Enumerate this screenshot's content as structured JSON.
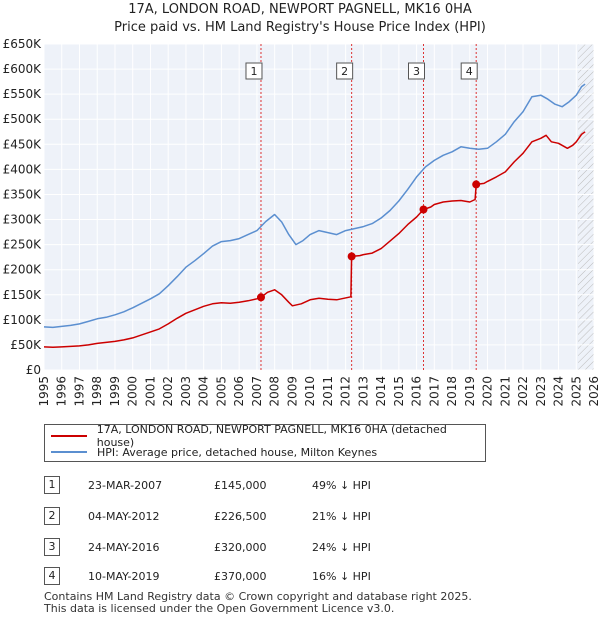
{
  "chart_data": {
    "type": "line",
    "title": "17A, LONDON ROAD, NEWPORT PAGNELL, MK16 0HA",
    "subtitle": "Price paid vs. HM Land Registry's House Price Index (HPI)",
    "xlabel": "",
    "ylabel": "",
    "xlim": [
      1995,
      2026
    ],
    "ylim": [
      0,
      650000
    ],
    "x_ticks": [
      "1995",
      "1996",
      "1997",
      "1998",
      "1999",
      "2000",
      "2001",
      "2002",
      "2003",
      "2004",
      "2005",
      "2006",
      "2007",
      "2008",
      "2009",
      "2010",
      "2011",
      "2012",
      "2013",
      "2014",
      "2015",
      "2016",
      "2017",
      "2018",
      "2019",
      "2020",
      "2021",
      "2022",
      "2023",
      "2024",
      "2025",
      "2026"
    ],
    "y_ticks": [
      {
        "value": 0,
        "label": "£0"
      },
      {
        "value": 50000,
        "label": "£50K"
      },
      {
        "value": 100000,
        "label": "£100K"
      },
      {
        "value": 150000,
        "label": "£150K"
      },
      {
        "value": 200000,
        "label": "£200K"
      },
      {
        "value": 250000,
        "label": "£250K"
      },
      {
        "value": 300000,
        "label": "£300K"
      },
      {
        "value": 350000,
        "label": "£350K"
      },
      {
        "value": 400000,
        "label": "£400K"
      },
      {
        "value": 450000,
        "label": "£450K"
      },
      {
        "value": 500000,
        "label": "£500K"
      },
      {
        "value": 550000,
        "label": "£550K"
      },
      {
        "value": 600000,
        "label": "£600K"
      },
      {
        "value": 650000,
        "label": "£650K"
      }
    ],
    "future_hatch_from": 2025.1,
    "series": [
      {
        "name": "17A, LONDON ROAD, NEWPORT PAGNELL, MK16 0HA (detached house)",
        "color": "#cc0000",
        "points": [
          [
            1995.0,
            46000
          ],
          [
            1995.5,
            45500
          ],
          [
            1996.0,
            46000
          ],
          [
            1996.5,
            47000
          ],
          [
            1997.0,
            48000
          ],
          [
            1997.5,
            50000
          ],
          [
            1998.0,
            53000
          ],
          [
            1998.5,
            55000
          ],
          [
            1999.0,
            57000
          ],
          [
            1999.5,
            60000
          ],
          [
            2000.0,
            64000
          ],
          [
            2000.5,
            70000
          ],
          [
            2001.0,
            76000
          ],
          [
            2001.5,
            82000
          ],
          [
            2002.0,
            92000
          ],
          [
            2002.5,
            103000
          ],
          [
            2003.0,
            113000
          ],
          [
            2003.5,
            120000
          ],
          [
            2004.0,
            127000
          ],
          [
            2004.5,
            132000
          ],
          [
            2005.0,
            134000
          ],
          [
            2005.5,
            133000
          ],
          [
            2006.0,
            135000
          ],
          [
            2006.5,
            138000
          ],
          [
            2007.0,
            142000
          ],
          [
            2007.23,
            145000
          ],
          [
            2007.6,
            155000
          ],
          [
            2008.0,
            160000
          ],
          [
            2008.4,
            150000
          ],
          [
            2008.8,
            135000
          ],
          [
            2009.0,
            128000
          ],
          [
            2009.5,
            132000
          ],
          [
            2010.0,
            140000
          ],
          [
            2010.5,
            143000
          ],
          [
            2011.0,
            141000
          ],
          [
            2011.5,
            140000
          ],
          [
            2011.9,
            143000
          ],
          [
            2012.3,
            146000
          ],
          [
            2012.34,
            226500
          ],
          [
            2012.8,
            228000
          ],
          [
            2013.0,
            230000
          ],
          [
            2013.5,
            233000
          ],
          [
            2014.0,
            242000
          ],
          [
            2014.5,
            257000
          ],
          [
            2015.0,
            272000
          ],
          [
            2015.5,
            290000
          ],
          [
            2016.0,
            305000
          ],
          [
            2016.39,
            320000
          ],
          [
            2016.8,
            325000
          ],
          [
            2017.0,
            330000
          ],
          [
            2017.5,
            335000
          ],
          [
            2018.0,
            337000
          ],
          [
            2018.5,
            338000
          ],
          [
            2019.0,
            335000
          ],
          [
            2019.3,
            340000
          ],
          [
            2019.36,
            370000
          ],
          [
            2019.8,
            372000
          ],
          [
            2020.0,
            376000
          ],
          [
            2020.5,
            385000
          ],
          [
            2021.0,
            395000
          ],
          [
            2021.5,
            415000
          ],
          [
            2022.0,
            432000
          ],
          [
            2022.5,
            455000
          ],
          [
            2023.0,
            462000
          ],
          [
            2023.3,
            468000
          ],
          [
            2023.6,
            455000
          ],
          [
            2024.0,
            452000
          ],
          [
            2024.5,
            442000
          ],
          [
            2024.8,
            448000
          ],
          [
            2025.0,
            455000
          ],
          [
            2025.3,
            470000
          ],
          [
            2025.5,
            475000
          ]
        ]
      },
      {
        "name": "HPI: Average price, detached house, Milton Keynes",
        "color": "#5b8fd0",
        "points": [
          [
            1995.0,
            86000
          ],
          [
            1995.5,
            85000
          ],
          [
            1996.0,
            87000
          ],
          [
            1996.5,
            89000
          ],
          [
            1997.0,
            92000
          ],
          [
            1997.5,
            97000
          ],
          [
            1998.0,
            102000
          ],
          [
            1998.5,
            105000
          ],
          [
            1999.0,
            110000
          ],
          [
            1999.5,
            116000
          ],
          [
            2000.0,
            124000
          ],
          [
            2000.5,
            133000
          ],
          [
            2001.0,
            142000
          ],
          [
            2001.5,
            152000
          ],
          [
            2002.0,
            168000
          ],
          [
            2002.5,
            186000
          ],
          [
            2003.0,
            205000
          ],
          [
            2003.5,
            218000
          ],
          [
            2004.0,
            232000
          ],
          [
            2004.5,
            247000
          ],
          [
            2005.0,
            256000
          ],
          [
            2005.5,
            258000
          ],
          [
            2006.0,
            262000
          ],
          [
            2006.5,
            270000
          ],
          [
            2007.0,
            278000
          ],
          [
            2007.5,
            296000
          ],
          [
            2008.0,
            310000
          ],
          [
            2008.4,
            295000
          ],
          [
            2008.8,
            270000
          ],
          [
            2009.2,
            250000
          ],
          [
            2009.6,
            258000
          ],
          [
            2010.0,
            270000
          ],
          [
            2010.5,
            278000
          ],
          [
            2011.0,
            274000
          ],
          [
            2011.5,
            270000
          ],
          [
            2012.0,
            278000
          ],
          [
            2012.5,
            282000
          ],
          [
            2013.0,
            286000
          ],
          [
            2013.5,
            292000
          ],
          [
            2014.0,
            303000
          ],
          [
            2014.5,
            318000
          ],
          [
            2015.0,
            337000
          ],
          [
            2015.5,
            360000
          ],
          [
            2016.0,
            385000
          ],
          [
            2016.5,
            405000
          ],
          [
            2017.0,
            418000
          ],
          [
            2017.5,
            428000
          ],
          [
            2018.0,
            435000
          ],
          [
            2018.5,
            445000
          ],
          [
            2019.0,
            442000
          ],
          [
            2019.5,
            440000
          ],
          [
            2020.0,
            442000
          ],
          [
            2020.5,
            455000
          ],
          [
            2021.0,
            470000
          ],
          [
            2021.5,
            495000
          ],
          [
            2022.0,
            515000
          ],
          [
            2022.5,
            545000
          ],
          [
            2023.0,
            548000
          ],
          [
            2023.4,
            540000
          ],
          [
            2023.8,
            530000
          ],
          [
            2024.2,
            525000
          ],
          [
            2024.6,
            535000
          ],
          [
            2025.0,
            548000
          ],
          [
            2025.3,
            565000
          ],
          [
            2025.5,
            570000
          ]
        ]
      }
    ],
    "sales": [
      {
        "label": "1",
        "x": 2007.23,
        "price": 145000
      },
      {
        "label": "2",
        "x": 2012.34,
        "price": 226500
      },
      {
        "label": "3",
        "x": 2016.39,
        "price": 320000
      },
      {
        "label": "4",
        "x": 2019.36,
        "price": 370000
      }
    ]
  },
  "legend": {
    "property_label": "17A, LONDON ROAD, NEWPORT PAGNELL, MK16 0HA (detached house)",
    "hpi_label": "HPI: Average price, detached house, Milton Keynes"
  },
  "transactions": [
    {
      "num": "1",
      "date": "23-MAR-2007",
      "price": "£145,000",
      "hpi": "49% ↓ HPI"
    },
    {
      "num": "2",
      "date": "04-MAY-2012",
      "price": "£226,500",
      "hpi": "21% ↓ HPI"
    },
    {
      "num": "3",
      "date": "24-MAY-2016",
      "price": "£320,000",
      "hpi": "24% ↓ HPI"
    },
    {
      "num": "4",
      "date": "10-MAY-2019",
      "price": "£370,000",
      "hpi": "16% ↓ HPI"
    }
  ],
  "footer": {
    "line1": "Contains HM Land Registry data © Crown copyright and database right 2025.",
    "line2": "This data is licensed under the Open Government Licence v3.0."
  },
  "colors": {
    "property": "#cc0000",
    "hpi": "#5b8fd0",
    "marker": "#cc0000"
  }
}
